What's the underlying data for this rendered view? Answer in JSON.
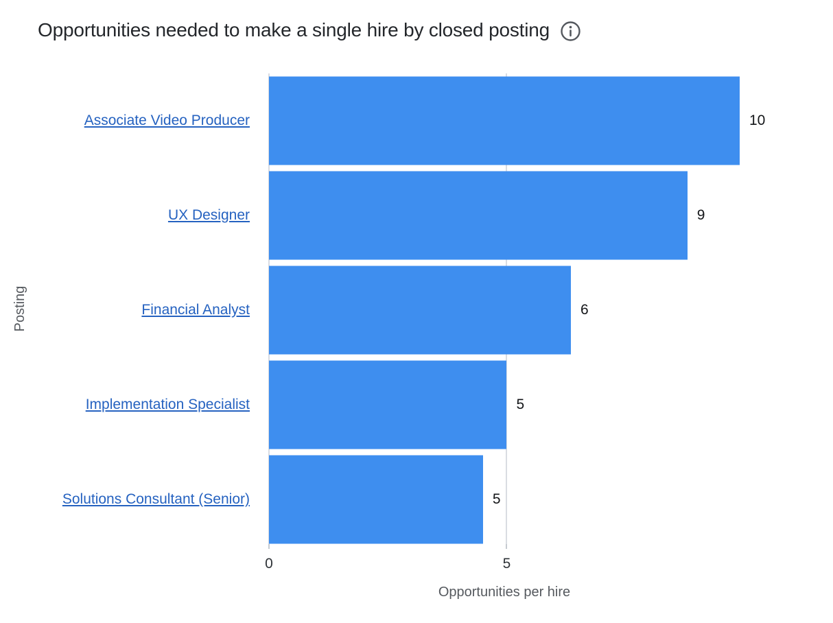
{
  "title": "Opportunities needed to make a single hire by closed posting",
  "info_tooltip_icon": "info-circle-icon",
  "chart_data": {
    "type": "bar",
    "orientation": "horizontal",
    "title": "Opportunities needed to make a single hire by closed posting",
    "categories": [
      "Associate Video Producer",
      "UX Designer",
      "Financial Analyst",
      "Implementation Specialist",
      "Solutions Consultant (Senior)"
    ],
    "values": [
      10,
      9,
      6,
      5,
      5
    ],
    "bar_lengths_estimated": [
      9.9,
      8.8,
      6.35,
      5.0,
      4.5
    ],
    "xlabel": "Opportunities per hire",
    "ylabel": "Posting",
    "xticks": [
      0,
      5
    ],
    "xlim": [
      0,
      9.9
    ],
    "grid": "vertical gridlines at x ticks only",
    "legend": "none",
    "category_labels_are_links": true,
    "bar_color": "#3e8eef"
  },
  "colors": {
    "bar": "#3e8eef",
    "link": "#2562c0",
    "grid": "#d9dce2",
    "tick_mark": "#c6cbd1",
    "tick_text": "#2f3338",
    "axis_title_text": "#55595e",
    "title_text": "#24272b",
    "value_text": "#131518",
    "background": "#ffffff"
  }
}
